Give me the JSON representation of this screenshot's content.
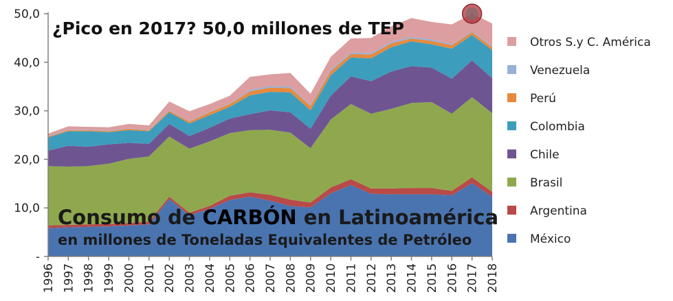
{
  "chart_data": {
    "type": "area",
    "stacked": true,
    "title_prefix": "Consumo de ",
    "title_emphasis": "CARBÓN",
    "title_suffix": " en Latinoamérica",
    "subtitle": "en millones de Toneladas Equivalentes de Petróleo",
    "annotation": "¿Pico en 2017? 50,0 millones de TEP",
    "highlight_year": "2017",
    "ylim": [
      0,
      50
    ],
    "ytick_labels": [
      "-",
      "10,0",
      "20,0",
      "30,0",
      "40,0",
      "50,0"
    ],
    "grid": false,
    "legend_position": "right",
    "x": [
      "1996",
      "1997",
      "1998",
      "1999",
      "2000",
      "2001",
      "2002",
      "2003",
      "2004",
      "2005",
      "2006",
      "2007",
      "2008",
      "2009",
      "2010",
      "2011",
      "2012",
      "2013",
      "2014",
      "2015",
      "2016",
      "2017",
      "2018"
    ],
    "series": [
      {
        "name": "México",
        "color": "#4a74b0",
        "values": [
          5.8,
          6.0,
          6.1,
          6.2,
          6.4,
          6.6,
          11.8,
          8.5,
          9.8,
          11.6,
          12.3,
          11.5,
          10.4,
          10.1,
          13.0,
          14.7,
          12.9,
          12.8,
          12.8,
          12.8,
          12.6,
          15.1,
          12.3
        ]
      },
      {
        "name": "Argentina",
        "color": "#b84a48",
        "values": [
          0.6,
          0.5,
          0.5,
          0.5,
          0.5,
          0.6,
          0.5,
          0.5,
          0.6,
          0.9,
          0.9,
          1.2,
          1.3,
          1.0,
          1.2,
          1.2,
          1.1,
          1.2,
          1.3,
          1.3,
          0.9,
          1.2,
          1.0
        ]
      },
      {
        "name": "Brasil",
        "color": "#8fa84e",
        "values": [
          12.2,
          12.0,
          12.0,
          12.4,
          13.2,
          13.4,
          12.4,
          13.2,
          13.3,
          12.9,
          12.8,
          13.4,
          13.8,
          11.2,
          14.0,
          15.5,
          15.4,
          16.4,
          17.5,
          17.7,
          15.9,
          16.5,
          16.2
        ]
      },
      {
        "name": "Chile",
        "color": "#6e5592",
        "values": [
          3.2,
          4.3,
          4.0,
          4.0,
          3.3,
          2.6,
          2.6,
          2.6,
          2.8,
          3.0,
          3.3,
          4.0,
          4.2,
          4.0,
          4.9,
          5.7,
          6.7,
          7.7,
          7.6,
          7.1,
          7.2,
          7.6,
          7.2
        ]
      },
      {
        "name": "Colombia",
        "color": "#3d9dbd",
        "values": [
          2.7,
          3.0,
          3.2,
          2.5,
          2.6,
          2.6,
          2.4,
          2.6,
          2.6,
          2.4,
          3.9,
          3.8,
          4.1,
          3.8,
          4.2,
          3.9,
          4.7,
          5.0,
          5.1,
          4.8,
          6.2,
          5.2,
          5.8
        ]
      },
      {
        "name": "Perú",
        "color": "#e68a3e",
        "values": [
          0.2,
          0.2,
          0.2,
          0.2,
          0.3,
          0.2,
          0.3,
          0.4,
          0.6,
          0.6,
          0.8,
          0.9,
          0.9,
          0.9,
          0.9,
          0.7,
          0.8,
          0.8,
          0.6,
          0.7,
          0.7,
          0.6,
          0.6
        ]
      },
      {
        "name": "Venezuela",
        "color": "#97b0d8",
        "values": [
          0.1,
          0.1,
          0.1,
          0.1,
          0.1,
          0.1,
          0.1,
          0.1,
          0.1,
          0.1,
          0.3,
          0.3,
          0.3,
          0.2,
          0.3,
          0.3,
          0.3,
          0.3,
          0.3,
          0.3,
          0.2,
          0.2,
          0.2
        ]
      },
      {
        "name": "Otros S.y C. América",
        "color": "#dc9ea0",
        "values": [
          0.5,
          0.7,
          0.6,
          0.7,
          0.9,
          0.9,
          1.8,
          2.0,
          1.6,
          1.6,
          2.7,
          2.4,
          2.8,
          2.3,
          2.6,
          2.9,
          3.1,
          3.2,
          3.9,
          3.6,
          4.1,
          3.6,
          4.7
        ]
      }
    ]
  }
}
